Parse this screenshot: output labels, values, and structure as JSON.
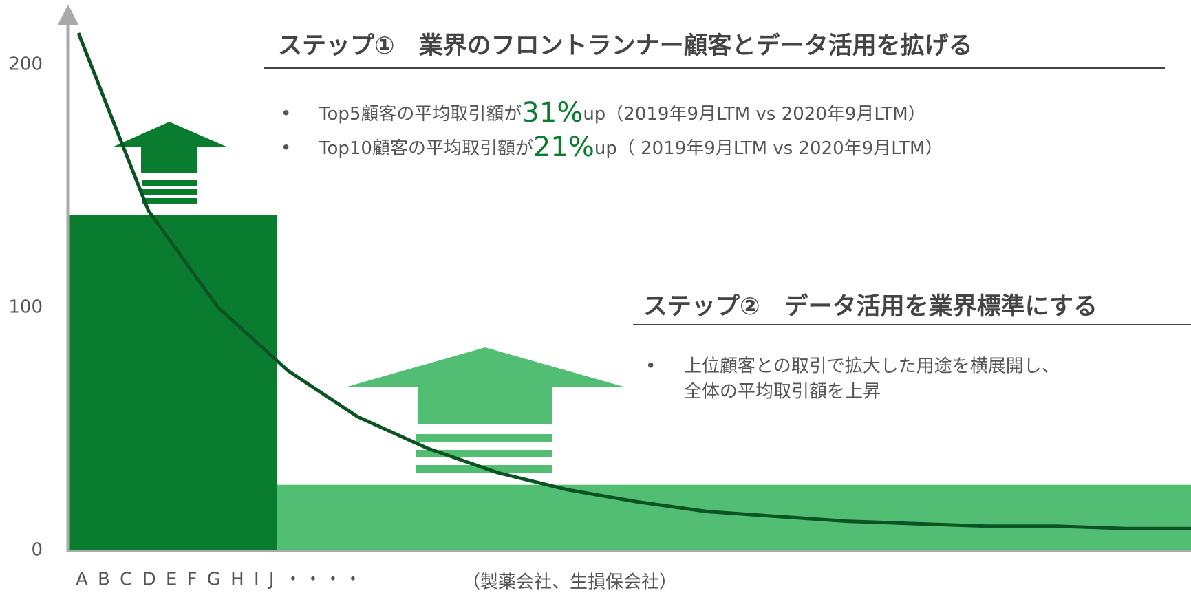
{
  "chart_data": {
    "type": "line",
    "ylim": [
      0,
      220
    ],
    "yticks": [
      0,
      100,
      200
    ],
    "bars": [
      {
        "value": 138,
        "color": "#0a7c2f"
      },
      {
        "value": 27,
        "color": "#52be73"
      }
    ],
    "series": [
      {
        "color": "#0b5323",
        "values": [
          213,
          140,
          100,
          74,
          55,
          42,
          32,
          25,
          20,
          16,
          14,
          12,
          11,
          10,
          10,
          9,
          9
        ]
      }
    ],
    "x_labels": [
      "A B C D E F G H I J ・・・・",
      "（製薬会社、生損保会社）"
    ],
    "annotations": [
      {
        "title": "ステップ①　業界のフロントランナー顧客とデータ活用を拡げる",
        "bullets": [
          [
            "Top5顧客の平均取引額が",
            "31%",
            "up（2019年9月LTM vs 2020年9月LTM）"
          ],
          [
            "Top10顧客の平均取引額が",
            "21%",
            "up（ 2019年9月LTM vs 2020年9月LTM）"
          ]
        ]
      },
      {
        "title": "ステップ②　データ活用を業界標準にする",
        "bullets": [
          [
            "上位顧客との取引で拡大した用途を横展開し、",
            "全体の平均取引額を上昇"
          ]
        ]
      }
    ]
  }
}
